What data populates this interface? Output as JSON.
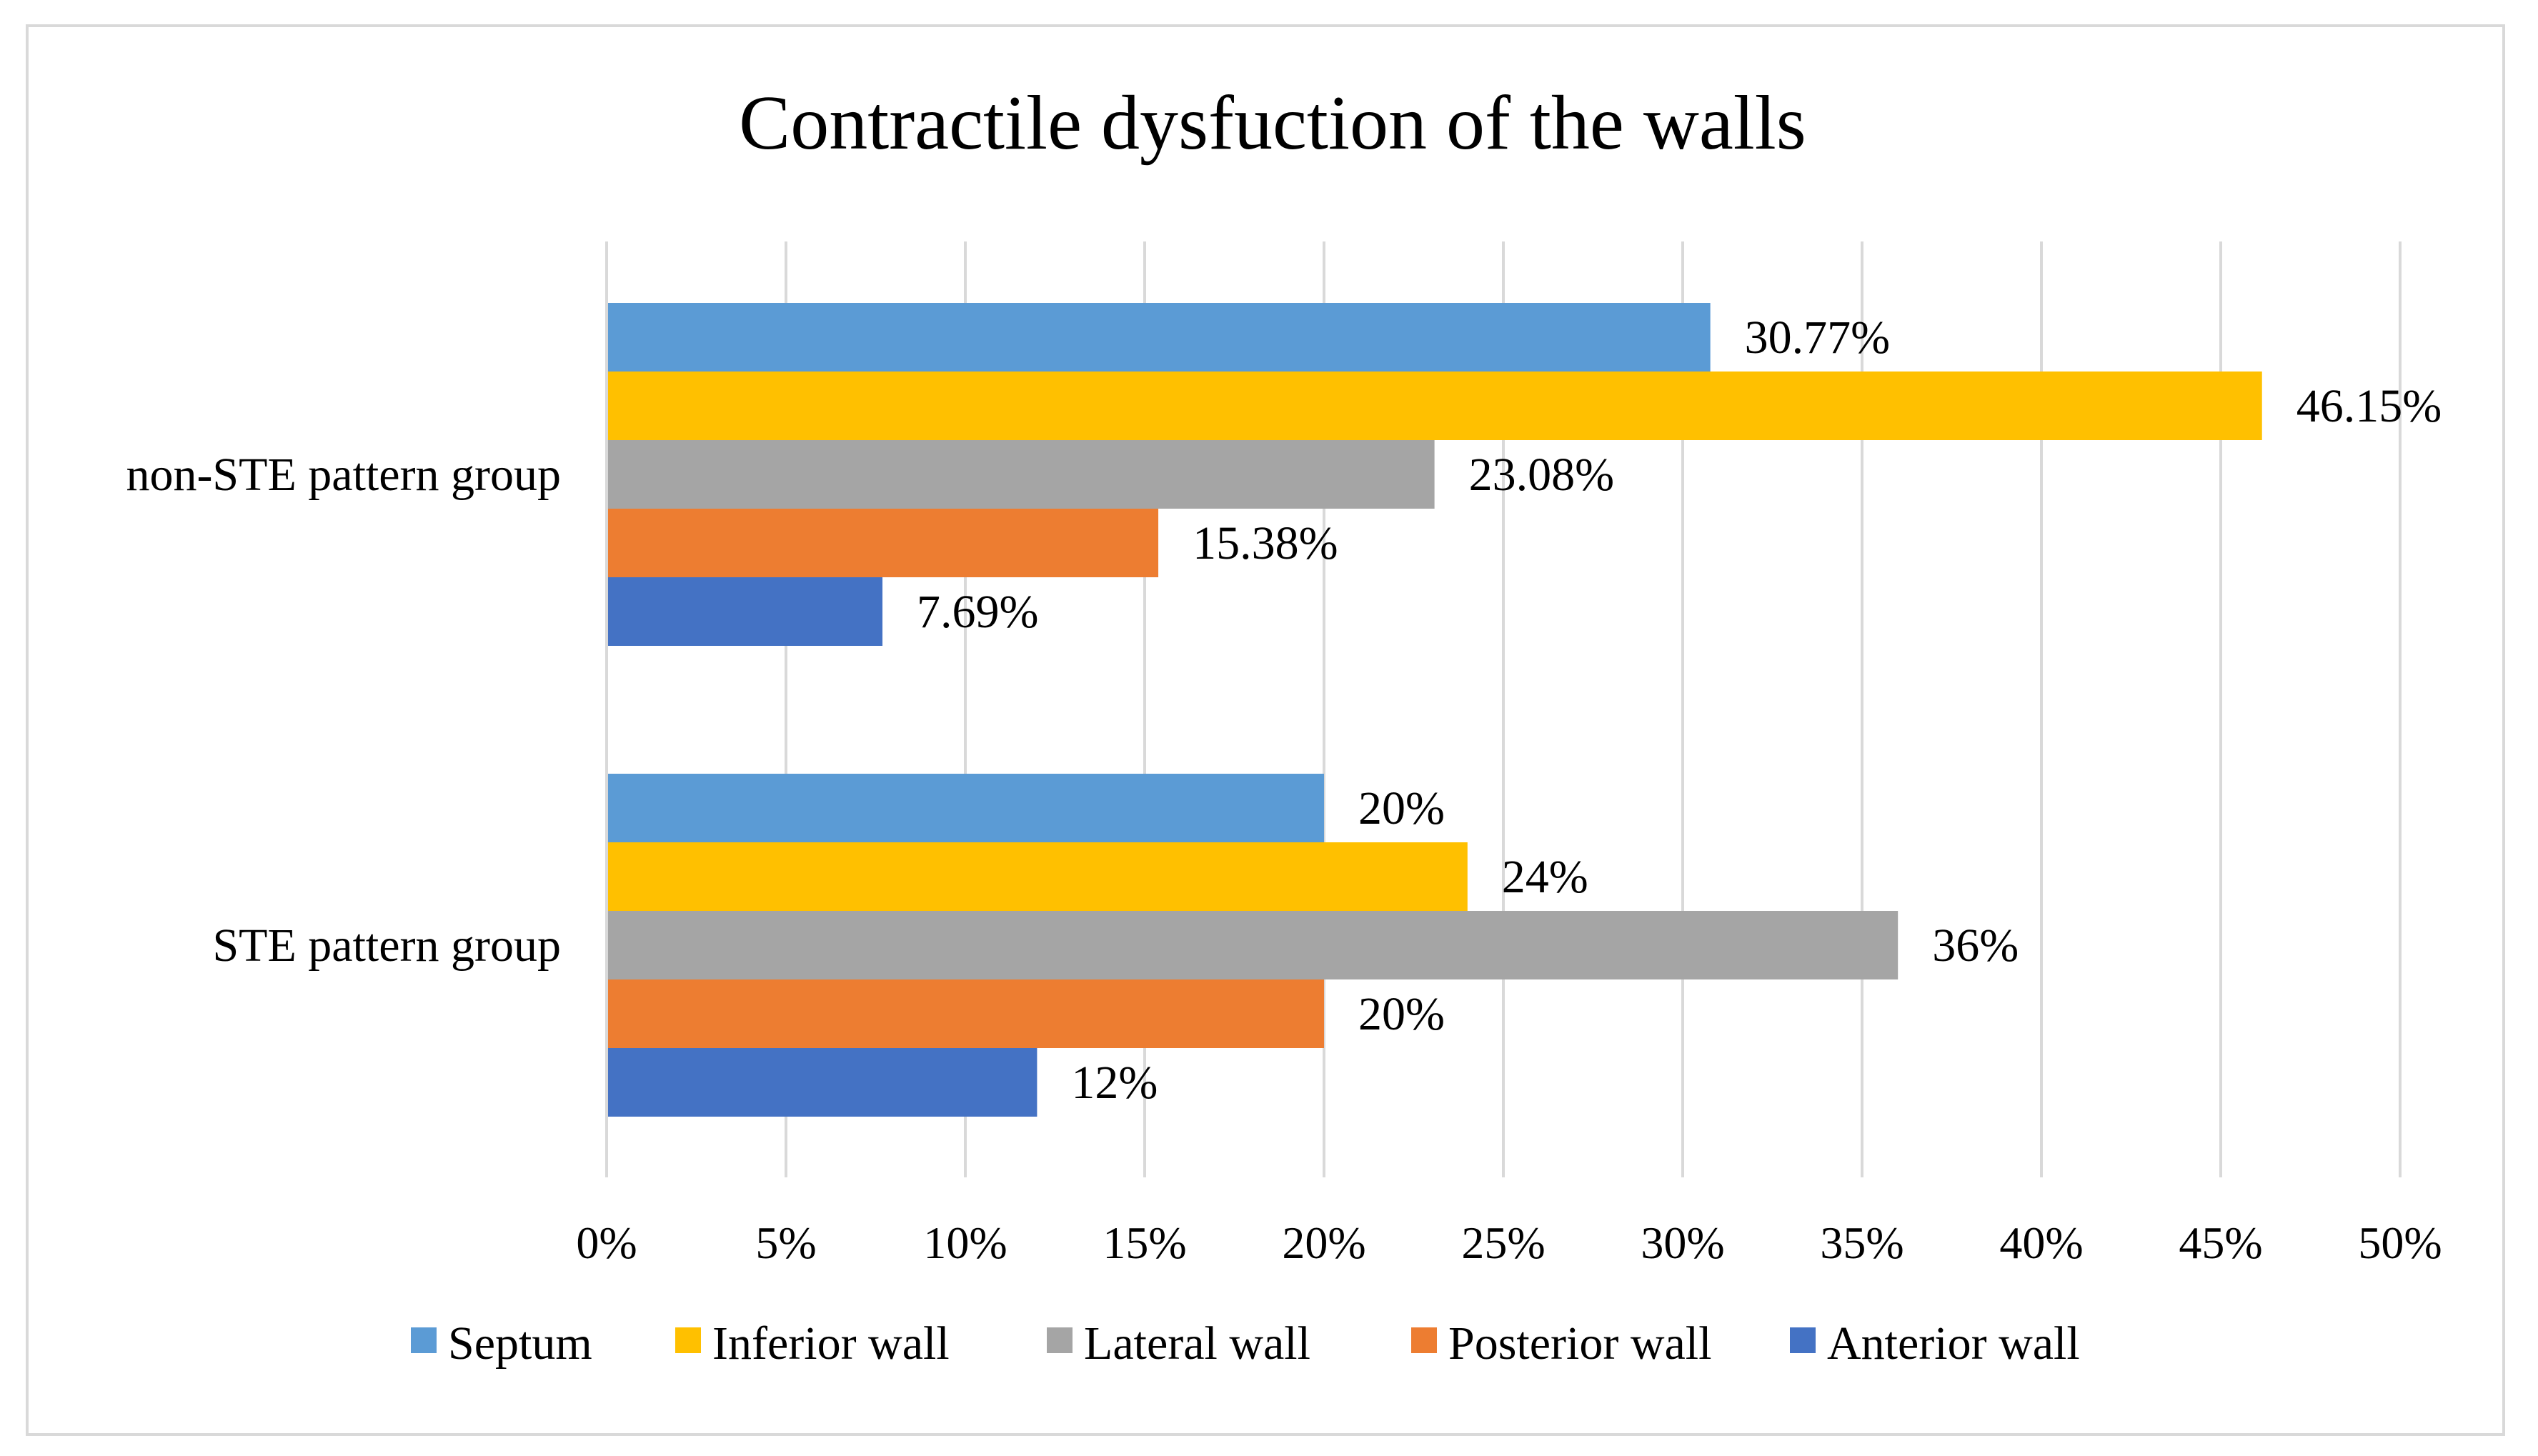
{
  "chart_data": {
    "type": "bar",
    "orientation": "horizontal",
    "title": "Contractile dysfuction of the walls",
    "xlabel": "",
    "ylabel": "",
    "xlim": [
      0,
      0.5
    ],
    "grid": "vertical",
    "legend_position": "bottom",
    "categories": [
      "non-STE pattern group",
      "STE pattern group"
    ],
    "x_ticks": [
      "0%",
      "5%",
      "10%",
      "15%",
      "20%",
      "25%",
      "30%",
      "35%",
      "40%",
      "45%",
      "50%"
    ],
    "series": [
      {
        "name": "Septum",
        "color": "#5b9bd5",
        "values": [
          0.3077,
          0.2
        ],
        "labels": [
          "30.77%",
          "20%"
        ]
      },
      {
        "name": "Inferior wall",
        "color": "#ffc000",
        "values": [
          0.4615,
          0.24
        ],
        "labels": [
          "46.15%",
          "24%"
        ]
      },
      {
        "name": "Lateral wall",
        "color": "#a5a5a5",
        "values": [
          0.2308,
          0.36
        ],
        "labels": [
          "23.08%",
          "36%"
        ]
      },
      {
        "name": "Posterior wall",
        "color": "#ed7d31",
        "values": [
          0.1538,
          0.2
        ],
        "labels": [
          "15.38%",
          "20%"
        ]
      },
      {
        "name": "Anterior wall",
        "color": "#4472c4",
        "values": [
          0.0769,
          0.12
        ],
        "labels": [
          "7.69%",
          "12%"
        ]
      }
    ]
  }
}
